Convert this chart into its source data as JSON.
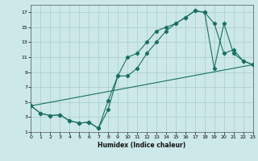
{
  "xlabel": "Humidex (Indice chaleur)",
  "bg_color": "#cce8e8",
  "grid_color": "#aacaca",
  "line_color": "#1a7060",
  "line1_x": [
    0,
    1,
    2,
    3,
    4,
    5,
    6,
    7,
    8,
    9,
    10,
    11,
    12,
    13,
    14,
    15,
    16,
    17,
    18,
    19,
    20,
    21,
    22,
    23
  ],
  "line1_y": [
    4.5,
    3.5,
    3.2,
    3.3,
    2.5,
    2.2,
    2.3,
    1.5,
    4.0,
    8.5,
    11.0,
    11.5,
    13.0,
    14.5,
    15.0,
    15.5,
    16.3,
    17.2,
    17.0,
    15.5,
    11.5,
    12.0,
    10.5,
    10.0
  ],
  "line2_x": [
    0,
    1,
    2,
    3,
    4,
    5,
    6,
    7,
    8,
    9,
    10,
    11,
    12,
    13,
    14,
    15,
    16,
    17,
    18,
    19,
    20,
    21,
    22,
    23
  ],
  "line2_y": [
    4.5,
    3.5,
    3.2,
    3.3,
    2.5,
    2.2,
    2.3,
    1.5,
    5.2,
    8.5,
    8.5,
    9.5,
    11.5,
    13.0,
    14.5,
    15.5,
    16.3,
    17.2,
    17.0,
    9.5,
    15.5,
    11.5,
    10.5,
    10.0
  ],
  "line3_x": [
    0,
    23
  ],
  "line3_y": [
    4.5,
    10.0
  ],
  "xlim": [
    0,
    23
  ],
  "ylim": [
    1,
    18
  ],
  "yticks": [
    1,
    3,
    5,
    7,
    9,
    11,
    13,
    15,
    17
  ],
  "xticks": [
    0,
    1,
    2,
    3,
    4,
    5,
    6,
    7,
    8,
    9,
    10,
    11,
    12,
    13,
    14,
    15,
    16,
    17,
    18,
    19,
    20,
    21,
    22,
    23
  ],
  "xlabel_fontsize": 5.5,
  "tick_fontsize": 4.5
}
